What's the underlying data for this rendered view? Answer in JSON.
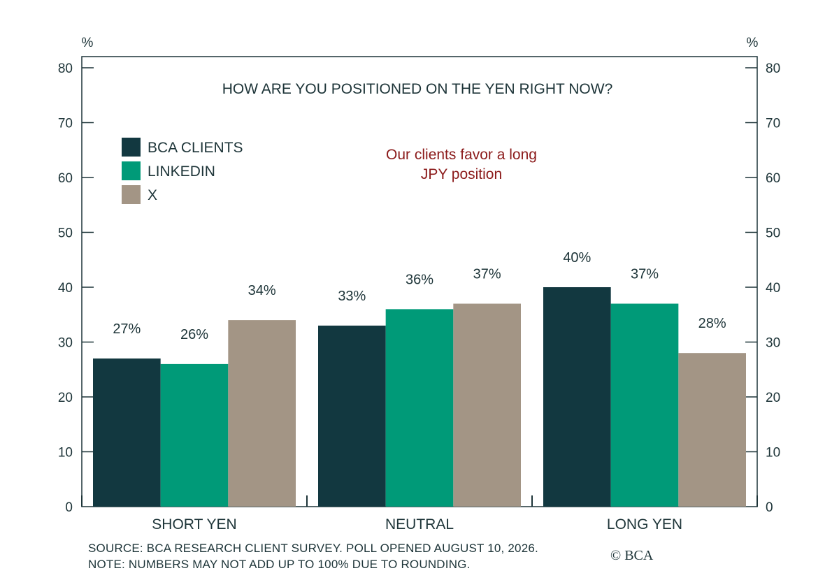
{
  "chart_data": {
    "type": "bar",
    "title": "HOW ARE YOU POSITIONED ON THE YEN RIGHT NOW?",
    "categories": [
      "SHORT YEN",
      "NEUTRAL",
      "LONG YEN"
    ],
    "series": [
      {
        "name": "BCA CLIENTS",
        "color": "#123840",
        "values": [
          27,
          33,
          40
        ],
        "labels": [
          "27%",
          "33%",
          "40%"
        ]
      },
      {
        "name": "LINKEDIN",
        "color": "#009a78",
        "values": [
          26,
          36,
          37
        ],
        "labels": [
          "26%",
          "36%",
          "37%"
        ]
      },
      {
        "name": "X",
        "color": "#a39585",
        "values": [
          34,
          37,
          28
        ],
        "labels": [
          "34%",
          "37%",
          "28%"
        ]
      }
    ],
    "ylim": [
      0,
      80
    ],
    "yticks": [
      0,
      10,
      20,
      30,
      40,
      50,
      60,
      70,
      80
    ],
    "y_unit": "%",
    "legend_position": "top-left",
    "annotation": [
      "Our clients favor a long",
      "JPY position"
    ],
    "grid": false
  },
  "source_note": "SOURCE: BCA RESEARCH CLIENT SURVEY. POLL OPENED AUGUST 10, 2026.",
  "rounding_note": "NOTE: NUMBERS MAY NOT ADD UP TO 100% DUE TO ROUNDING.",
  "copyright": "© BCA"
}
